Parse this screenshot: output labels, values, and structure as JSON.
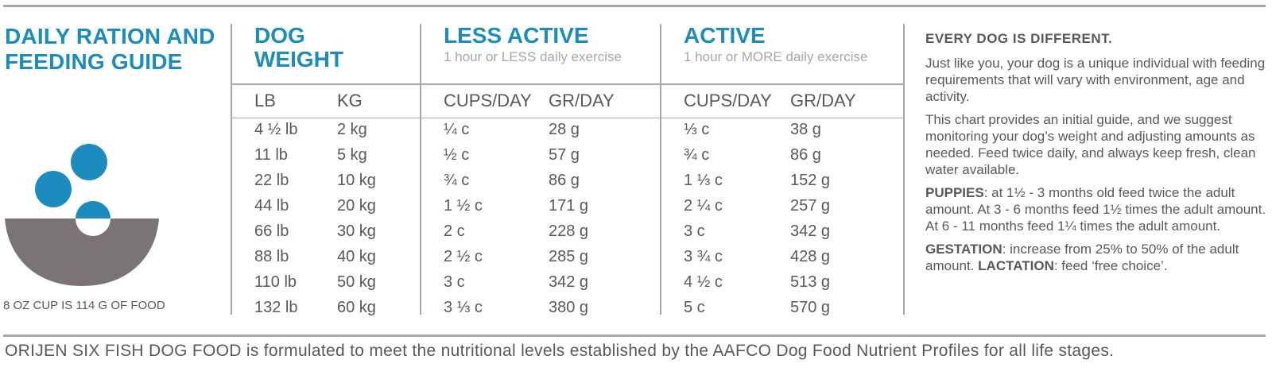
{
  "title": "DAILY RATION AND FEEDING GUIDE",
  "title_lines": [
    "DAILY RATION AND",
    "FEEDING GUIDE"
  ],
  "cup_note": "8 OZ CUP IS 114 G OF FOOD",
  "bowl_icon": "bowl-with-kibble-icon",
  "colors": {
    "accent": "#1c8bbd",
    "text": "#5c5855",
    "muted": "#a9a6a5",
    "bowl": "#7a7574"
  },
  "columns": {
    "weight": {
      "head_lines": [
        "DOG",
        "WEIGHT"
      ],
      "sub_lb": "LB",
      "sub_kg": "KG"
    },
    "less_active": {
      "head": "LESS ACTIVE",
      "sub": "1 hour or LESS daily exercise",
      "cups": "CUPS/DAY",
      "gr": "GR/DAY"
    },
    "active": {
      "head": "ACTIVE",
      "sub": "1 hour or MORE daily exercise",
      "cups": "CUPS/DAY",
      "gr": "GR/DAY"
    }
  },
  "rows": [
    {
      "lb": "4 ½ lb",
      "kg": "2 kg",
      "la_cups": "¼ c",
      "la_gr": "28 g",
      "a_cups": "⅓ c",
      "a_gr": "38 g"
    },
    {
      "lb": "11 lb",
      "kg": "5 kg",
      "la_cups": "½ c",
      "la_gr": "57 g",
      "a_cups": "¾ c",
      "a_gr": "86 g"
    },
    {
      "lb": "22 lb",
      "kg": "10 kg",
      "la_cups": "¾ c",
      "la_gr": "86 g",
      "a_cups": "1 ⅓ c",
      "a_gr": "152 g"
    },
    {
      "lb": "44 lb",
      "kg": "20 kg",
      "la_cups": "1 ½ c",
      "la_gr": "171 g",
      "a_cups": "2 ¼ c",
      "a_gr": "257 g"
    },
    {
      "lb": "66 lb",
      "kg": "30 kg",
      "la_cups": "2 c",
      "la_gr": "228 g",
      "a_cups": "3 c",
      "a_gr": "342 g"
    },
    {
      "lb": "88 lb",
      "kg": "40 kg",
      "la_cups": "2 ½ c",
      "la_gr": "285 g",
      "a_cups": "3 ¾ c",
      "a_gr": "428 g"
    },
    {
      "lb": "110 lb",
      "kg": "50 kg",
      "la_cups": "3 c",
      "la_gr": "342 g",
      "a_cups": "4 ½ c",
      "a_gr": "513 g"
    },
    {
      "lb": "132 lb",
      "kg": "60 kg",
      "la_cups": "3 ⅓ c",
      "la_gr": "380 g",
      "a_cups": "5 c",
      "a_gr": "570 g"
    }
  ],
  "right_panel": {
    "title": "EVERY DOG IS DIFFERENT.",
    "p1": "Just like you, your dog is a unique individual with feeding requirements that will vary with environment, age and activity.",
    "p2": "This chart provides an initial guide, and we suggest monitoring your dog’s weight and adjusting amounts as needed. Feed twice daily, and always keep fresh, clean water available.",
    "puppies_label": "PUPPIES",
    "puppies_text": ": at 1½ - 3 months old feed twice the adult amount. At 3 - 6 months feed 1½ times the adult amount. At 6 - 11 months feed 1¼ times the adult amount.",
    "gestation_label": "GESTATION",
    "gestation_text": ": increase from 25% to 50% of the adult amount. ",
    "lactation_label": "LACTATION",
    "lactation_text": ": feed ‘free choice’."
  },
  "footer": "ORIJEN SIX FISH DOG FOOD is formulated to meet the nutritional levels established by the AAFCO Dog Food Nutrient Profiles for all life stages."
}
